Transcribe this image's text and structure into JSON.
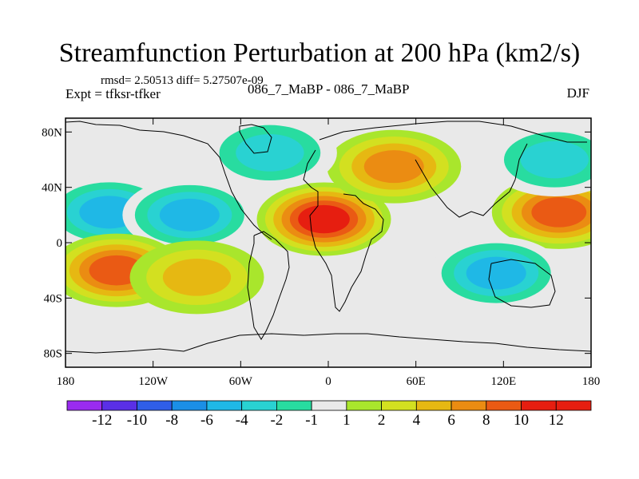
{
  "chart_data": {
    "type": "heatmap",
    "subtype": "filled-contour-map",
    "title": "Streamfunction Perturbation at 200 hPa (km2/s)",
    "stats": "rmsd= 2.50513 diff= 5.27507e-09",
    "experiment": "Expt = tfksr-tfker",
    "case_label": "086_7_MaBP - 086_7_MaBP",
    "season": "DJF",
    "x_ticks": [
      "180",
      "120W",
      "60W",
      "0",
      "60E",
      "120E",
      "180"
    ],
    "x_tick_values": [
      -180,
      -120,
      -60,
      0,
      60,
      120,
      180
    ],
    "y_ticks": [
      "80N",
      "40N",
      "0",
      "40S",
      "80S"
    ],
    "y_tick_values": [
      80,
      40,
      0,
      -40,
      -80
    ],
    "xlim": [
      -180,
      180
    ],
    "ylim": [
      -90,
      90
    ],
    "colorbar": {
      "levels": [
        "-12",
        "-10",
        "-8",
        "-6",
        "-4",
        "-2",
        "-1",
        "1",
        "2",
        "4",
        "6",
        "8",
        "10",
        "12"
      ],
      "colors": [
        "#9a2bf0",
        "#5a2fe6",
        "#2f5ee8",
        "#1b8fe6",
        "#1fb8e6",
        "#29d2d2",
        "#28dca0",
        "#e9e9e9",
        "#a9e62c",
        "#d3e020",
        "#e6b812",
        "#eb8c12",
        "#ea5a14",
        "#e61e10",
        "#e61e10"
      ]
    },
    "features": [
      {
        "name": "north-pacific-low",
        "lon": -150,
        "lat": 22,
        "value": -6
      },
      {
        "name": "north-america-low",
        "lon": -95,
        "lat": 20,
        "value": -6
      },
      {
        "name": "south-pacific-high",
        "lon": -145,
        "lat": -20,
        "value": 8
      },
      {
        "name": "south-america-high",
        "lon": -90,
        "lat": -25,
        "value": 4
      },
      {
        "name": "north-africa-high",
        "lon": -3,
        "lat": 17,
        "value": 10
      },
      {
        "name": "central-asia-high",
        "lon": 45,
        "lat": 55,
        "value": 6
      },
      {
        "name": "north-pacific-high",
        "lon": 158,
        "lat": 22,
        "value": 8
      },
      {
        "name": "south-indian-low",
        "lon": 115,
        "lat": -22,
        "value": -6
      },
      {
        "name": "north-canada-low",
        "lon": -40,
        "lat": 65,
        "value": -4
      },
      {
        "name": "siberia-low",
        "lon": 155,
        "lat": 60,
        "value": -4
      }
    ]
  }
}
